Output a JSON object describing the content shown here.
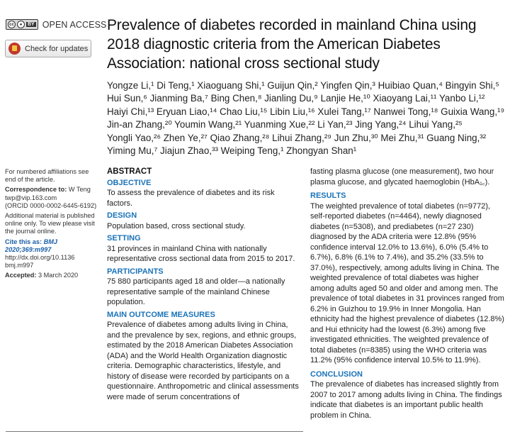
{
  "badges": {
    "cc_label": "cc",
    "by_label": "BY",
    "open_access": "OPEN ACCESS",
    "check_updates": "Check for updates"
  },
  "title": "Prevalence of diabetes recorded in mainland China using 2018 diagnostic criteria from the American Diabetes Association: national cross sectional study",
  "authors": [
    "Yongze Li,¹ Di Teng,¹ Xiaoguang Shi,¹ Guijun Qin,² Yingfen Qin,³ Huibiao Quan,⁴ Bingyin Shi,⁵",
    "Hui Sun,⁶ Jianming Ba,⁷ Bing Chen,⁸ Jianling Du,⁹ Lanjie He,¹⁰ Xiaoyang Lai,¹¹ Yanbo Li,¹²",
    "Haiyi Chi,¹³ Eryuan Liao,¹⁴ Chao Liu,¹⁵ Libin Liu,¹⁶ Xulei Tang,¹⁷ Nanwei Tong,¹⁸ Guixia Wang,¹⁹",
    "Jin-an Zhang,²⁰ Youmin Wang,²¹ Yuanming Xue,²² Li Yan,²³ Jing Yang,²⁴ Lihui Yang,²⁵",
    "Yongli Yao,²⁶ Zhen Ye,²⁷ Qiao Zhang,²⁸ Lihui Zhang,²⁹ Jun Zhu,³⁰ Mei Zhu,³¹ Guang Ning,³²",
    "Yiming Mu,⁷ Jiajun Zhao,³³ Weiping Teng,¹ Zhongyan Shan¹"
  ],
  "sidebar": {
    "affiliations": "For numbered affiliations see end of the article.",
    "correspondence_label": "Correspondence to:",
    "correspondence_name": "W Teng",
    "email": "twp@vip.163.com",
    "orcid": "(ORCID 0000-0002-6445-6192)",
    "additional": "Additional material is published online only. To view please visit the journal online.",
    "cite_label": "Cite this as:",
    "cite_value": "BMJ 2020;369:m997",
    "doi": "http://dx.doi.org/10.1136 bmj.m997",
    "accepted_label": "Accepted:",
    "accepted_date": "3 March 2020"
  },
  "abstract": {
    "heading": "ABSTRACT",
    "objective_h": "OBJECTIVE",
    "objective": "To assess the prevalence of diabetes and its risk factors.",
    "design_h": "DESIGN",
    "design": "Population based, cross sectional study.",
    "setting_h": "SETTING",
    "setting": "31 provinces in mainland China with nationally representative cross sectional data from 2015 to 2017.",
    "participants_h": "PARTICIPANTS",
    "participants": "75 880 participants aged 18 and older—a nationally representative sample of the mainland Chinese population.",
    "measures_h": "MAIN OUTCOME MEASURES",
    "measures": "Prevalence of diabetes among adults living in China, and the prevalence by sex, regions, and ethnic groups, estimated by the 2018 American Diabetes Association (ADA) and the World Health Organization diagnostic criteria. Demographic characteristics, lifestyle, and history of disease were recorded by participants on a questionnaire. Anthropometric and clinical assessments were made of serum concentrations of",
    "measures_cont": "fasting plasma glucose (one measurement), two hour plasma glucose, and glycated haemoglobin (HbA₁꜀).",
    "results_h": "RESULTS",
    "results": "The weighted prevalence of total diabetes (n=9772), self-reported diabetes (n=4464), newly diagnosed diabetes (n=5308), and prediabetes (n=27 230) diagnosed by the ADA criteria were 12.8% (95% confidence interval 12.0% to 13.6%), 6.0% (5.4% to 6.7%), 6.8% (6.1% to 7.4%), and 35.2% (33.5% to 37.0%), respectively, among adults living in China. The weighted prevalence of total diabetes was higher among adults aged 50 and older and among men. The prevalence of total diabetes in 31 provinces ranged from 6.2% in Guizhou to 19.9% in Inner Mongolia. Han ethnicity had the highest prevalence of diabetes (12.8%) and Hui ethnicity had the lowest (6.3%) among five investigated ethnicities. The weighted prevalence of total diabetes (n=8385) using the WHO criteria was 11.2% (95% confidence interval 10.5% to 11.9%).",
    "conclusion_h": "CONCLUSION",
    "conclusion": "The prevalence of diabetes has increased slightly from 2007 to 2017 among adults living in China. The findings indicate that diabetes is an important public health problem in China."
  }
}
